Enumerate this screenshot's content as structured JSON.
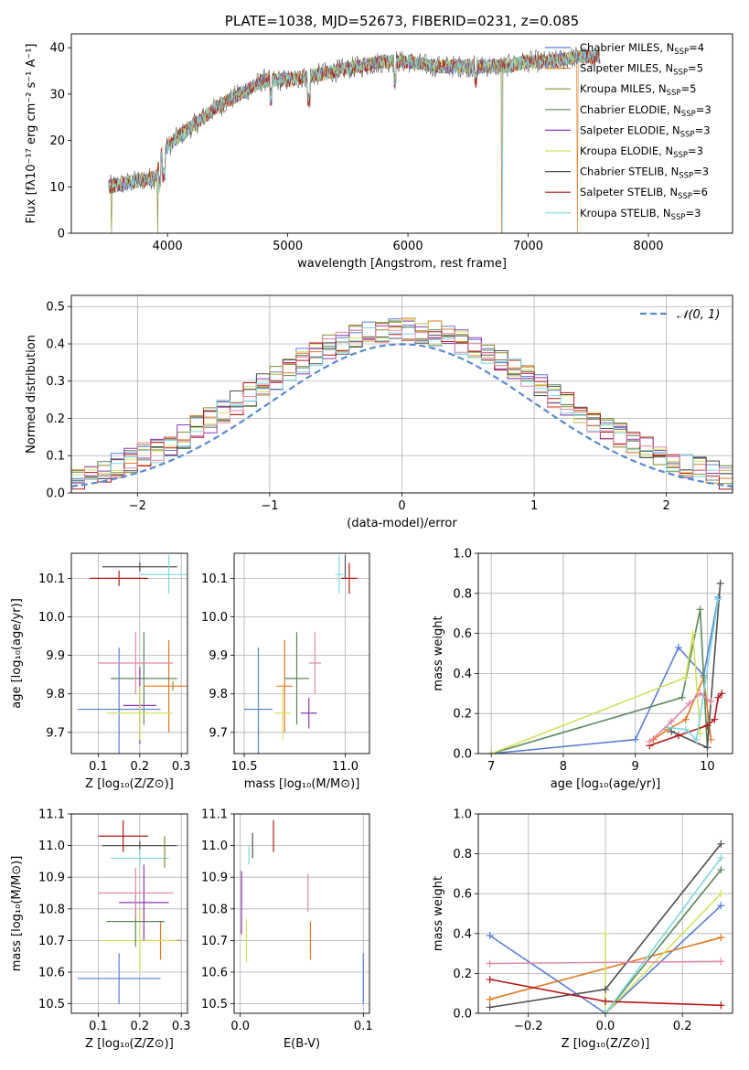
{
  "colors": [
    "#5a7fd2",
    "#e07a22",
    "#8a8a30",
    "#5a8a5a",
    "#8a3ab0",
    "#d4e060",
    "#505050",
    "#b01818",
    "#7ed8e0",
    "#e089a8"
  ],
  "chart_data": [
    {
      "id": "spectrum",
      "type": "line",
      "title": "PLATE=1038, MJD=52673, FIBERID=0231, z=0.085",
      "xlabel": "wavelength [Angstrom, rest frame]",
      "ylabel": "Flux [fλ10⁻¹⁷ erg cm⁻² s⁻¹ A⁻¹]",
      "xlim": [
        3200,
        8700
      ],
      "ylim": [
        0,
        43
      ],
      "xticks": [
        4000,
        5000,
        6000,
        7000,
        8000
      ],
      "yticks": [
        0,
        10,
        20,
        30,
        40
      ],
      "grid": false,
      "legend_position": "top-right",
      "legend": [
        {
          "label": "Chabrier MILES, N",
          "sub": "SSP",
          "tail": "=4"
        },
        {
          "label": "Salpeter MILES, N",
          "sub": "SSP",
          "tail": "=5"
        },
        {
          "label": "Kroupa MILES, N",
          "sub": "SSP",
          "tail": "=5"
        },
        {
          "label": "Chabrier ELODIE, N",
          "sub": "SSP",
          "tail": "=3"
        },
        {
          "label": "Salpeter ELODIE, N",
          "sub": "SSP",
          "tail": "=3"
        },
        {
          "label": "Kroupa ELODIE, N",
          "sub": "SSP",
          "tail": "=3"
        },
        {
          "label": "Chabrier STELIB, N",
          "sub": "SSP",
          "tail": "=3"
        },
        {
          "label": "Salpeter STELIB, N",
          "sub": "SSP",
          "tail": "=6"
        },
        {
          "label": "Kroupa STELIB, N",
          "sub": "SSP",
          "tail": "=3"
        }
      ],
      "continuum": [
        [
          3500,
          10
        ],
        [
          3700,
          11
        ],
        [
          3900,
          12
        ],
        [
          3950,
          17
        ],
        [
          4050,
          20
        ],
        [
          4200,
          23
        ],
        [
          4400,
          27
        ],
        [
          4600,
          30
        ],
        [
          4800,
          33
        ],
        [
          5000,
          33
        ],
        [
          5200,
          34
        ],
        [
          5400,
          35
        ],
        [
          5600,
          36
        ],
        [
          5800,
          37
        ],
        [
          6000,
          37
        ],
        [
          6200,
          36
        ],
        [
          6400,
          36
        ],
        [
          6600,
          36
        ],
        [
          6800,
          36
        ],
        [
          7000,
          37
        ],
        [
          7200,
          37
        ],
        [
          7400,
          38
        ],
        [
          7600,
          38
        ]
      ]
    },
    {
      "id": "residuals",
      "type": "step",
      "xlabel": "(data-model)/error",
      "ylabel": "Normed distribution",
      "xlim": [
        -2.5,
        2.5
      ],
      "ylim": [
        0,
        0.53
      ],
      "xticks": [
        -2,
        -1,
        0,
        1,
        2
      ],
      "xtick_labels": [
        "−2",
        "−1",
        "0",
        "1",
        "2"
      ],
      "yticks": [
        0.0,
        0.1,
        0.2,
        0.3,
        0.4,
        0.5
      ],
      "ytick_labels": [
        "0.0",
        "0.1",
        "0.2",
        "0.3",
        "0.4",
        "0.5"
      ],
      "grid": true,
      "legend_position": "top-right",
      "normal_label": "𝒩(0, 1)",
      "bin_edges_start": -2.5,
      "bin_width": 0.1
    },
    {
      "id": "age-vs-Z",
      "type": "errorbar",
      "xlabel": "Z [log₁₀(Z/Z⊙)]",
      "ylabel": "age  [log₁₀(age/yr)]",
      "xlim": [
        0.035,
        0.315
      ],
      "ylim": [
        9.645,
        10.165
      ],
      "xticks": [
        0.1,
        0.2,
        0.3
      ],
      "xtick_labels": [
        "0.1",
        "0.2",
        "0.3"
      ],
      "yticks": [
        9.7,
        9.8,
        9.9,
        10.0,
        10.1
      ],
      "ytick_labels": [
        "9.7",
        "9.8",
        "9.9",
        "10.0",
        "10.1"
      ],
      "grid": true,
      "points": [
        {
          "x": 0.15,
          "y": 9.76,
          "xerr": 0.1,
          "yerr": 0.16,
          "color": 0
        },
        {
          "x": 0.27,
          "y": 9.82,
          "xerr": 0.06,
          "yerr": 0.12,
          "color": 1
        },
        {
          "x": 0.28,
          "y": 9.82,
          "xerr": 0.0,
          "yerr": 0.0,
          "color": 2
        },
        {
          "x": 0.21,
          "y": 9.84,
          "xerr": 0.08,
          "yerr": 0.12,
          "color": 3
        },
        {
          "x": 0.2,
          "y": 9.77,
          "xerr": 0.04,
          "yerr": 0.1,
          "color": 4
        },
        {
          "x": 0.2,
          "y": 9.75,
          "xerr": 0.08,
          "yerr": 0.07,
          "color": 5
        },
        {
          "x": 0.2,
          "y": 10.13,
          "xerr": 0.09,
          "yerr": 0.0,
          "color": 6
        },
        {
          "x": 0.15,
          "y": 10.1,
          "xerr": 0.07,
          "yerr": 0.02,
          "color": 7
        },
        {
          "x": 0.27,
          "y": 10.11,
          "xerr": 0.07,
          "yerr": 0.05,
          "color": 8
        },
        {
          "x": 0.19,
          "y": 9.88,
          "xerr": 0.09,
          "yerr": 0.08,
          "color": 9
        }
      ]
    },
    {
      "id": "age-vs-mass",
      "type": "errorbar",
      "xlabel": "mass [log₁₀(M/M⊙)]",
      "xlim": [
        10.45,
        11.12
      ],
      "ylim": [
        9.645,
        10.165
      ],
      "xticks": [
        10.5,
        11.0
      ],
      "xtick_labels": [
        "10.5",
        "11.0"
      ],
      "yticks": [
        9.7,
        9.8,
        9.9,
        10.0,
        10.1
      ],
      "ytick_labels": [
        "9.7",
        "9.8",
        "9.9",
        "10.0",
        "10.1"
      ],
      "grid": true,
      "points": [
        {
          "x": 10.57,
          "y": 9.76,
          "xerr": 0.07,
          "yerr": 0.16,
          "color": 0
        },
        {
          "x": 10.7,
          "y": 9.82,
          "xerr": 0.04,
          "yerr": 0.12,
          "color": 1
        },
        {
          "x": 10.76,
          "y": 9.84,
          "xerr": 0.06,
          "yerr": 0.12,
          "color": 3
        },
        {
          "x": 10.82,
          "y": 9.75,
          "xerr": 0.04,
          "yerr": 0.04,
          "color": 4
        },
        {
          "x": 10.69,
          "y": 9.75,
          "xerr": 0.04,
          "yerr": 0.07,
          "color": 5
        },
        {
          "x": 11.0,
          "y": 10.13,
          "xerr": 0.0,
          "yerr": 0.03,
          "color": 6
        },
        {
          "x": 11.02,
          "y": 10.1,
          "xerr": 0.04,
          "yerr": 0.04,
          "color": 7
        },
        {
          "x": 10.97,
          "y": 10.11,
          "xerr": 0.02,
          "yerr": 0.05,
          "color": 8
        },
        {
          "x": 10.85,
          "y": 9.88,
          "xerr": 0.03,
          "yerr": 0.08,
          "color": 9
        }
      ]
    },
    {
      "id": "weight-vs-age",
      "type": "line",
      "xlabel": "age  [log₁₀(age/yr)]",
      "ylabel": "mass weight",
      "xlim": [
        6.82,
        10.35
      ],
      "ylim": [
        0,
        1.0
      ],
      "xticks": [
        7,
        8,
        9,
        10
      ],
      "xtick_labels": [
        "7",
        "8",
        "9",
        "10"
      ],
      "yticks": [
        0.0,
        0.2,
        0.4,
        0.6,
        0.8,
        1.0
      ],
      "ytick_labels": [
        "0.0",
        "0.2",
        "0.4",
        "0.6",
        "0.8",
        "1.0"
      ],
      "grid": true,
      "series": [
        {
          "color": 0,
          "points": [
            [
              7.0,
              0.0
            ],
            [
              9.0,
              0.07
            ],
            [
              9.6,
              0.53
            ],
            [
              9.95,
              0.39
            ],
            [
              10.15,
              0.78
            ]
          ]
        },
        {
          "color": 1,
          "points": [
            [
              9.25,
              0.07
            ],
            [
              9.45,
              0.12
            ],
            [
              9.7,
              0.17
            ],
            [
              9.95,
              0.38
            ],
            [
              10.05,
              0.07
            ]
          ]
        },
        {
          "color": 3,
          "points": [
            [
              7.0,
              0.0
            ],
            [
              9.65,
              0.28
            ],
            [
              9.9,
              0.72
            ],
            [
              10.0,
              0.03
            ]
          ]
        },
        {
          "color": 5,
          "points": [
            [
              7.0,
              0.0
            ],
            [
              9.7,
              0.38
            ],
            [
              9.8,
              0.6
            ],
            [
              9.9,
              0.1
            ]
          ]
        },
        {
          "color": 6,
          "points": [
            [
              9.5,
              0.11
            ],
            [
              10.0,
              0.03
            ],
            [
              10.18,
              0.85
            ]
          ]
        },
        {
          "color": 7,
          "points": [
            [
              9.2,
              0.04
            ],
            [
              9.6,
              0.09
            ],
            [
              10.0,
              0.14
            ],
            [
              10.1,
              0.17
            ],
            [
              10.15,
              0.28
            ],
            [
              10.2,
              0.3
            ]
          ]
        },
        {
          "color": 8,
          "points": [
            [
              9.45,
              0.13
            ],
            [
              9.7,
              0.12
            ],
            [
              9.85,
              0.07
            ],
            [
              10.15,
              0.77
            ]
          ]
        },
        {
          "color": 9,
          "points": [
            [
              9.2,
              0.06
            ],
            [
              9.5,
              0.16
            ],
            [
              9.75,
              0.25
            ],
            [
              9.9,
              0.3
            ],
            [
              10.05,
              0.26
            ]
          ]
        }
      ]
    },
    {
      "id": "mass-vs-Z",
      "type": "errorbar",
      "xlabel": "Z [log₁₀(Z/Z⊙)]",
      "ylabel": "mass [log₁₀(M/M⊙)]",
      "xlim": [
        0.035,
        0.315
      ],
      "ylim": [
        10.47,
        11.1
      ],
      "xticks": [
        0.1,
        0.2,
        0.3
      ],
      "xtick_labels": [
        "0.1",
        "0.2",
        "0.3"
      ],
      "yticks": [
        10.5,
        10.6,
        10.7,
        10.8,
        10.9,
        11.0,
        11.1
      ],
      "ytick_labels": [
        "10.5",
        "10.6",
        "10.7",
        "10.8",
        "10.9",
        "11.0",
        "11.1"
      ],
      "grid": true,
      "points": [
        {
          "x": 0.15,
          "y": 10.58,
          "xerr": 0.1,
          "yerr": 0.08,
          "color": 0
        },
        {
          "x": 0.25,
          "y": 10.7,
          "xerr": 0.05,
          "yerr": 0.06,
          "color": 1
        },
        {
          "x": 0.2,
          "y": 10.7,
          "xerr": 0.09,
          "yerr": 0.1,
          "color": 5
        },
        {
          "x": 0.19,
          "y": 10.76,
          "xerr": 0.07,
          "yerr": 0.08,
          "color": 3
        },
        {
          "x": 0.21,
          "y": 10.82,
          "xerr": 0.06,
          "yerr": 0.12,
          "color": 4
        },
        {
          "x": 0.19,
          "y": 10.85,
          "xerr": 0.09,
          "yerr": 0.08,
          "color": 9
        },
        {
          "x": 0.2,
          "y": 11.0,
          "xerr": 0.09,
          "yerr": 0.0,
          "color": 6
        },
        {
          "x": 0.16,
          "y": 11.03,
          "xerr": 0.06,
          "yerr": 0.05,
          "color": 7
        },
        {
          "x": 0.2,
          "y": 10.96,
          "xerr": 0.07,
          "yerr": 0.03,
          "color": 8
        },
        {
          "x": 0.26,
          "y": 10.98,
          "xerr": 0.0,
          "yerr": 0.05,
          "color": 2
        }
      ]
    },
    {
      "id": "mass-vs-EBV",
      "type": "errorbar",
      "xlabel": "E(B-V)",
      "xlim": [
        -0.005,
        0.105
      ],
      "ylim": [
        10.47,
        11.1
      ],
      "xticks": [
        0.0,
        0.1
      ],
      "xtick_labels": [
        "0.0",
        "0.1"
      ],
      "yticks": [
        10.5,
        10.6,
        10.7,
        10.8,
        10.9,
        11.0,
        11.1
      ],
      "ytick_labels": [
        "10.5",
        "10.6",
        "10.7",
        "10.8",
        "10.9",
        "11.0",
        "11.1"
      ],
      "grid": true,
      "points": [
        {
          "x": 0.1,
          "y": 10.58,
          "xerr": 0.0,
          "yerr": 0.08,
          "color": 0
        },
        {
          "x": 0.057,
          "y": 10.7,
          "xerr": 0.0,
          "yerr": 0.06,
          "color": 1
        },
        {
          "x": 0.005,
          "y": 10.7,
          "xerr": 0.0,
          "yerr": 0.07,
          "color": 5
        },
        {
          "x": 0.001,
          "y": 10.82,
          "xerr": 0.0,
          "yerr": 0.1,
          "color": 4
        },
        {
          "x": 0.055,
          "y": 10.85,
          "xerr": 0.0,
          "yerr": 0.06,
          "color": 9
        },
        {
          "x": 0.01,
          "y": 11.0,
          "xerr": 0.0,
          "yerr": 0.04,
          "color": 6
        },
        {
          "x": 0.027,
          "y": 11.03,
          "xerr": 0.0,
          "yerr": 0.05,
          "color": 7
        },
        {
          "x": 0.007,
          "y": 10.97,
          "xerr": 0.0,
          "yerr": 0.03,
          "color": 8
        }
      ]
    },
    {
      "id": "weight-vs-Z",
      "type": "line",
      "xlabel": "Z [log₁₀(Z/Z⊙)]",
      "ylabel": "mass weight",
      "xlim": [
        -0.33,
        0.33
      ],
      "ylim": [
        0,
        1.0
      ],
      "xticks": [
        -0.2,
        0.0,
        0.2
      ],
      "xtick_labels": [
        "−0.2",
        "0.0",
        "0.2"
      ],
      "yticks": [
        0.0,
        0.2,
        0.4,
        0.6,
        0.8,
        1.0
      ],
      "ytick_labels": [
        "0.0",
        "0.2",
        "0.4",
        "0.6",
        "0.8",
        "1.0"
      ],
      "grid": true,
      "series": [
        {
          "color": 0,
          "points": [
            [
              -0.3,
              0.39
            ],
            [
              0.0,
              0.0
            ],
            [
              0.3,
              0.54
            ]
          ]
        },
        {
          "color": 1,
          "points": [
            [
              -0.3,
              0.07
            ],
            [
              0.3,
              0.38
            ]
          ]
        },
        {
          "color": 3,
          "points": [
            [
              0.0,
              0.0
            ],
            [
              0.3,
              0.72
            ]
          ]
        },
        {
          "color": 5,
          "points": [
            [
              0.0,
              0.4
            ],
            [
              0.0,
              0.0
            ],
            [
              0.3,
              0.6
            ]
          ]
        },
        {
          "color": 6,
          "points": [
            [
              -0.3,
              0.03
            ],
            [
              0.0,
              0.12
            ],
            [
              0.3,
              0.85
            ]
          ]
        },
        {
          "color": 7,
          "points": [
            [
              -0.3,
              0.17
            ],
            [
              0.0,
              0.06
            ],
            [
              0.3,
              0.04
            ]
          ]
        },
        {
          "color": 8,
          "points": [
            [
              0.0,
              0.0
            ],
            [
              0.3,
              0.78
            ]
          ]
        },
        {
          "color": 9,
          "points": [
            [
              -0.3,
              0.25
            ],
            [
              0.3,
              0.26
            ]
          ]
        }
      ]
    }
  ]
}
